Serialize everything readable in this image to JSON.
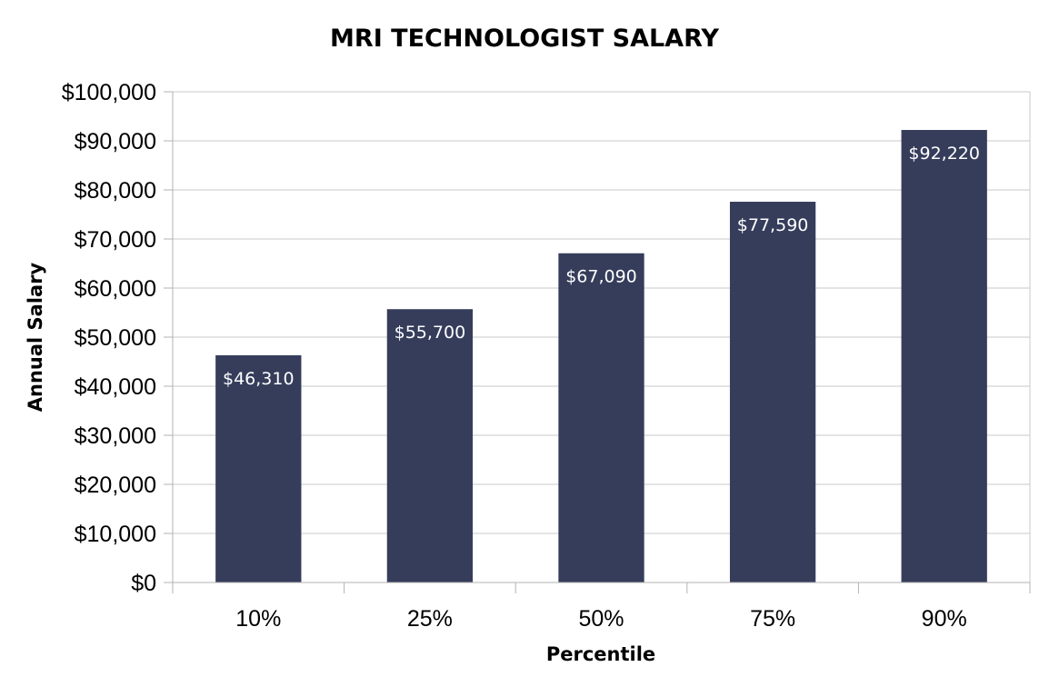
{
  "chart_data": {
    "type": "bar",
    "title": "MRI TECHNOLOGIST SALARY",
    "xlabel": "Percentile",
    "ylabel": "Annual Salary",
    "categories": [
      "10%",
      "25%",
      "50%",
      "75%",
      "90%"
    ],
    "values": [
      46310,
      55700,
      67090,
      77590,
      92220
    ],
    "data_labels": [
      "$46,310",
      "$55,700",
      "$67,090",
      "$77,590",
      "$92,220"
    ],
    "ylim": [
      0,
      100000
    ],
    "yticks": [
      0,
      10000,
      20000,
      30000,
      40000,
      50000,
      60000,
      70000,
      80000,
      90000,
      100000
    ],
    "ytick_labels": [
      "$0",
      "$10,000",
      "$20,000",
      "$30,000",
      "$40,000",
      "$50,000",
      "$60,000",
      "$70,000",
      "$80,000",
      "$90,000",
      "$100,000"
    ],
    "grid": true,
    "legend": "none",
    "colors": {
      "bar": "#353d5b",
      "grid": "#c8c8c8",
      "axis": "#b3b3b3",
      "data_label": "#ffffff"
    }
  }
}
